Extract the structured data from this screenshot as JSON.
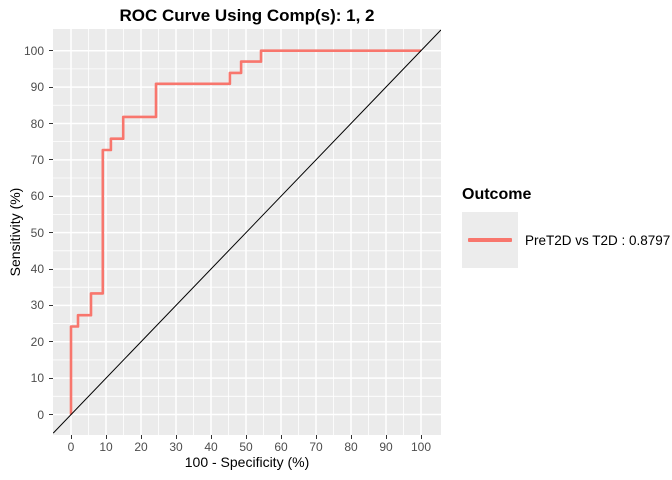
{
  "title": "ROC Curve Using Comp(s): 1, 2",
  "axes": {
    "x_label": "100 - Specificity (%)",
    "y_label": "Sensitivity (%)",
    "x_ticks": [
      0,
      10,
      20,
      30,
      40,
      50,
      60,
      70,
      80,
      90,
      100
    ],
    "y_ticks": [
      0,
      10,
      20,
      30,
      40,
      50,
      60,
      70,
      80,
      90,
      100
    ],
    "minor_ticks": [
      5,
      15,
      25,
      35,
      45,
      55,
      65,
      75,
      85,
      95
    ]
  },
  "legend": {
    "title": "Outcome",
    "items": [
      {
        "label": "PreT2D vs T2D : 0.8797",
        "color": "#F8766D"
      }
    ]
  },
  "colors": {
    "curve": "#F8766D",
    "panel_background": "#EBEBEB",
    "grid": "#FFFFFF",
    "tick_text": "#4D4D4D",
    "reference_line": "#000000",
    "legend_key_background": "#ECECEC"
  },
  "chart_data": {
    "type": "line",
    "title": "ROC Curve Using Comp(s): 1, 2",
    "xlabel": "100 - Specificity (%)",
    "ylabel": "Sensitivity (%)",
    "xlim": [
      0,
      100
    ],
    "ylim": [
      0,
      100
    ],
    "grid": "on",
    "legend_position": "right",
    "auc": 0.8797,
    "series": [
      {
        "name": "PreT2D vs T2D : 0.8797",
        "color": "#F8766D",
        "style": "step",
        "points": [
          [
            0,
            0
          ],
          [
            0,
            24.2
          ],
          [
            2,
            24.2
          ],
          [
            2,
            27.3
          ],
          [
            5.7,
            27.3
          ],
          [
            5.7,
            33.3
          ],
          [
            9.1,
            33.3
          ],
          [
            9.1,
            72.7
          ],
          [
            11.4,
            72.7
          ],
          [
            11.4,
            75.8
          ],
          [
            14.9,
            75.8
          ],
          [
            14.9,
            81.8
          ],
          [
            24.3,
            81.8
          ],
          [
            24.3,
            90.9
          ],
          [
            45.4,
            90.9
          ],
          [
            45.4,
            93.9
          ],
          [
            48.6,
            93.9
          ],
          [
            48.6,
            97
          ],
          [
            54.3,
            97
          ],
          [
            54.3,
            100
          ],
          [
            100,
            100
          ]
        ]
      },
      {
        "name": "reference-diagonal",
        "color": "#000000",
        "style": "line",
        "points": [
          [
            -5.1,
            -5.1
          ],
          [
            105.7,
            105.7
          ]
        ]
      }
    ]
  }
}
